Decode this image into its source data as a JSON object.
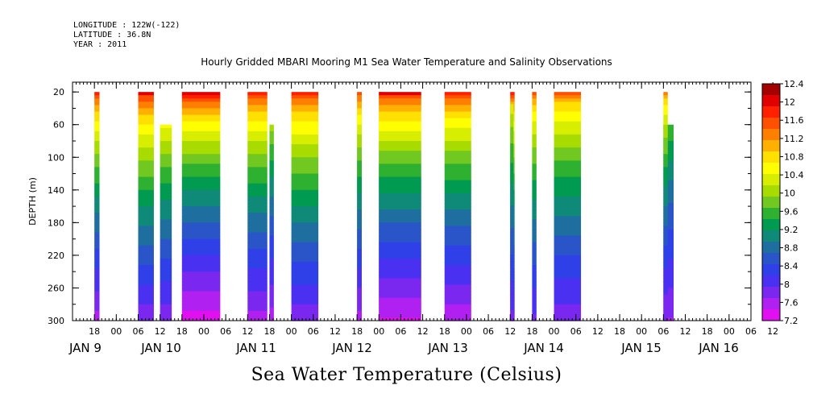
{
  "header": {
    "longitude": "LONGITUDE : 122W(-122)",
    "latitude": "LATITUDE : 36.8N",
    "year": "YEAR : 2011"
  },
  "chart_data": {
    "type": "heatmap",
    "title": "Hourly Gridded MBARI Mooring M1 Sea Water Temperature and Salinity Observations",
    "xlabel": "Sea Water Temperature (Celsius)",
    "ylabel": "DEPTH (m)",
    "ylim": [
      300,
      8
    ],
    "yticks": [
      20,
      60,
      100,
      140,
      180,
      220,
      260,
      300
    ],
    "xlim_hours": [
      0,
      186
    ],
    "x_hour_ticks": [
      "18",
      "00",
      "06",
      "12",
      "18",
      "00",
      "06",
      "12",
      "18",
      "00",
      "06",
      "12",
      "18",
      "00",
      "06",
      "12",
      "18",
      "00",
      "06",
      "12",
      "18",
      "00",
      "06",
      "12",
      "18",
      "00",
      "06",
      "12",
      "18",
      "00",
      "06",
      "12"
    ],
    "day_labels": [
      "JAN  9",
      "JAN 10",
      "JAN 11",
      "JAN 12",
      "JAN 13",
      "JAN 14",
      "JAN 15",
      "JAN 16"
    ],
    "colorbar": {
      "labels": [
        "12.4",
        "12",
        "11.6",
        "11.2",
        "10.8",
        "10.4",
        "10",
        "9.6",
        "9.2",
        "8.8",
        "8.4",
        "8",
        "7.6",
        "7.2"
      ],
      "colors": [
        "#a50000",
        "#e00000",
        "#ff2000",
        "#ff5000",
        "#ff8000",
        "#ffb000",
        "#ffe000",
        "#ffff00",
        "#d8ee00",
        "#a8dc00",
        "#70c820",
        "#2eb030",
        "#009a50",
        "#108a78",
        "#1e6ea0",
        "#2a55c8",
        "#3040e8",
        "#4a30f0",
        "#7a28f0",
        "#b020f0",
        "#e010f0"
      ],
      "range": [
        7.2,
        12.8
      ]
    },
    "segments": [
      {
        "start_day": "JAN 9",
        "start_hour": "18",
        "hours": 1.4,
        "top_depth": 20,
        "surface_temp": 12.2,
        "deep_temp": 7.6
      },
      {
        "start_day": "JAN 10",
        "start_hour": "06",
        "hours": 4.3,
        "top_depth": 20,
        "surface_temp": 12.3,
        "deep_temp": 7.8
      },
      {
        "start_day": "JAN 10",
        "start_hour": "12",
        "hours": 3.2,
        "top_depth": 60,
        "surface_temp": 12.0,
        "deep_temp": 7.8
      },
      {
        "start_day": "JAN 10",
        "start_hour": "18",
        "hours": 10.5,
        "top_depth": 20,
        "surface_temp": 12.4,
        "deep_temp": 7.3
      },
      {
        "start_day": "JAN 11",
        "start_hour": "12",
        "hours": 5.4,
        "top_depth": 20,
        "surface_temp": 12.2,
        "deep_temp": 7.6
      },
      {
        "start_day": "JAN 11",
        "start_hour": "18",
        "hours": 1.2,
        "top_depth": 60,
        "surface_temp": 11.4,
        "deep_temp": 7.6
      },
      {
        "start_day": "JAN 12",
        "start_hour": "00",
        "hours": 7.4,
        "top_depth": 20,
        "surface_temp": 12.2,
        "deep_temp": 7.8
      },
      {
        "start_day": "JAN 12",
        "start_hour": "18",
        "hours": 1.3,
        "top_depth": 20,
        "surface_temp": 12.0,
        "deep_temp": 7.6
      },
      {
        "start_day": "JAN 13",
        "start_hour": "00",
        "hours": 1.3,
        "top_depth": 20,
        "surface_temp": 12.0,
        "deep_temp": 7.8
      },
      {
        "start_day": "JAN 13",
        "start_hour": "00",
        "hours": 11.6,
        "top_depth": 20,
        "surface_temp": 12.3,
        "deep_temp": 7.4
      },
      {
        "start_day": "JAN 13",
        "start_hour": "18",
        "hours": 7.3,
        "top_depth": 20,
        "surface_temp": 12.2,
        "deep_temp": 7.5
      },
      {
        "start_day": "JAN 14",
        "start_hour": "12",
        "hours": 1.2,
        "top_depth": 20,
        "surface_temp": 12.1,
        "deep_temp": 7.9
      },
      {
        "start_day": "JAN 14",
        "start_hour": "12",
        "hours": 0.9,
        "top_depth": 35,
        "surface_temp": 11.2,
        "deep_temp": 7.9
      },
      {
        "start_day": "JAN 14",
        "start_hour": "18",
        "hours": 1.2,
        "top_depth": 20,
        "surface_temp": 11.8,
        "deep_temp": 7.9
      },
      {
        "start_day": "JAN 15",
        "start_hour": "00",
        "hours": 7.4,
        "top_depth": 20,
        "surface_temp": 11.8,
        "deep_temp": 7.8
      },
      {
        "start_day": "JAN 16",
        "start_hour": "06",
        "hours": 2.8,
        "top_depth": 60,
        "surface_temp": 10.8,
        "deep_temp": 7.7
      },
      {
        "start_day": "JAN 16",
        "start_hour": "06",
        "hours": 1.2,
        "top_depth": 20,
        "surface_temp": 11.6,
        "deep_temp": 7.7
      }
    ]
  }
}
